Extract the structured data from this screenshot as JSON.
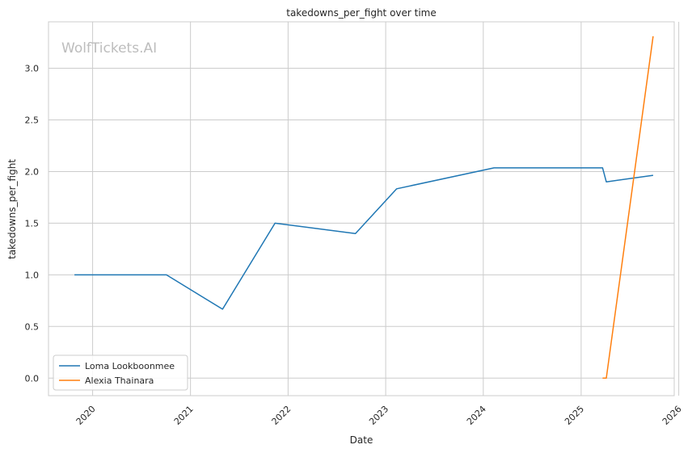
{
  "chart_data": {
    "type": "line",
    "title": "takedowns_per_fight over time",
    "xlabel": "Date",
    "ylabel": "takedowns_per_fight",
    "watermark": "WolfTickets.AI",
    "x_ticks": [
      "2020",
      "2021",
      "2022",
      "2023",
      "2024",
      "2025",
      "2026"
    ],
    "y_ticks": [
      "0.0",
      "0.5",
      "1.0",
      "1.5",
      "2.0",
      "2.5",
      "3.0"
    ],
    "xlim": [
      "2019-07-20",
      "2025-12-15"
    ],
    "ylim": [
      -0.17,
      3.45
    ],
    "grid": true,
    "legend_position": "lower-left",
    "series": [
      {
        "name": "Loma Lookboonmee",
        "color": "#1f77b4",
        "points": [
          {
            "x": "2019-10-25",
            "y": 1.0
          },
          {
            "x": "2020-10-03",
            "y": 1.0
          },
          {
            "x": "2021-05-01",
            "y": 0.667
          },
          {
            "x": "2021-11-13",
            "y": 1.5
          },
          {
            "x": "2022-09-10",
            "y": 1.4
          },
          {
            "x": "2023-02-11",
            "y": 1.833
          },
          {
            "x": "2024-02-10",
            "y": 2.036
          },
          {
            "x": "2025-03-22",
            "y": 2.036
          },
          {
            "x": "2025-04-05",
            "y": 1.9
          },
          {
            "x": "2025-09-27",
            "y": 1.964
          }
        ]
      },
      {
        "name": "Alexia Thainara",
        "color": "#ff7f0e",
        "points": [
          {
            "x": "2025-03-22",
            "y": 0.0
          },
          {
            "x": "2025-04-05",
            "y": 0.0
          },
          {
            "x": "2025-09-27",
            "y": 3.31
          }
        ]
      }
    ]
  }
}
